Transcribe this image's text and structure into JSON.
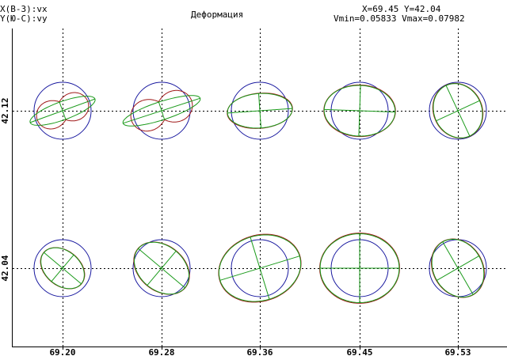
{
  "header": {
    "left_line1": "X(B-З):vx",
    "left_line2": "Y(Ю-С):vy",
    "title": "Деформация",
    "coord_readout": "X=69.45 Y=42.04",
    "vrange_readout": "Vmin=0.05833 Vmax=0.07982"
  },
  "chart_data": {
    "type": "scatter",
    "title": "Деформация",
    "x_ticks": [
      "69.20",
      "69.28",
      "69.36",
      "69.45",
      "69.53"
    ],
    "y_ticks": [
      "42.12",
      "42.04"
    ],
    "grid": true,
    "vmin": 0.05833,
    "vmax": 0.07982,
    "colors": {
      "reference_circle": "#1a1aa0",
      "strain_curve_red": "#a01818",
      "strain_curve_green": "#1a9a1a",
      "axis_green": "#1a9a1a",
      "grid": "#000000"
    },
    "glyphs": [
      {
        "x": "69.20",
        "y": "42.12",
        "ellipse_a": 0.068,
        "ellipse_b": 0.018,
        "angle_deg": 20,
        "red_shape": "two-lobe"
      },
      {
        "x": "69.28",
        "y": "42.12",
        "ellipse_a": 0.08,
        "ellipse_b": 0.018,
        "angle_deg": 18,
        "red_shape": "two-lobe"
      },
      {
        "x": "69.36",
        "y": "42.12",
        "ellipse_a": 0.064,
        "ellipse_b": 0.034,
        "angle_deg": 4,
        "red_shape": "ellipse"
      },
      {
        "x": "69.45",
        "y": "42.12",
        "ellipse_a": 0.07,
        "ellipse_b": 0.05,
        "angle_deg": -2,
        "red_shape": "ellipse"
      },
      {
        "x": "69.53",
        "y": "42.04",
        "ellipse_a": 0.06,
        "ellipse_b": 0.048,
        "angle_deg": -60,
        "red_shape": "ellipse"
      },
      {
        "x": "69.53",
        "y": "42.12",
        "ellipse_a": 0.055,
        "ellipse_b": 0.047,
        "angle_deg": -65,
        "red_shape": "ellipse"
      },
      {
        "x": "69.20",
        "y": "42.04",
        "ellipse_a": 0.048,
        "ellipse_b": 0.034,
        "angle_deg": -40,
        "red_shape": "ellipse"
      },
      {
        "x": "69.28",
        "y": "42.04",
        "ellipse_a": 0.06,
        "ellipse_b": 0.044,
        "angle_deg": -40,
        "red_shape": "ellipse"
      },
      {
        "x": "69.36",
        "y": "42.04",
        "ellipse_a": 0.082,
        "ellipse_b": 0.064,
        "angle_deg": 17,
        "red_shape": "ellipse"
      },
      {
        "x": "69.45",
        "y": "42.04",
        "ellipse_a": 0.078,
        "ellipse_b": 0.068,
        "angle_deg": 0,
        "red_shape": "ellipse"
      }
    ]
  }
}
